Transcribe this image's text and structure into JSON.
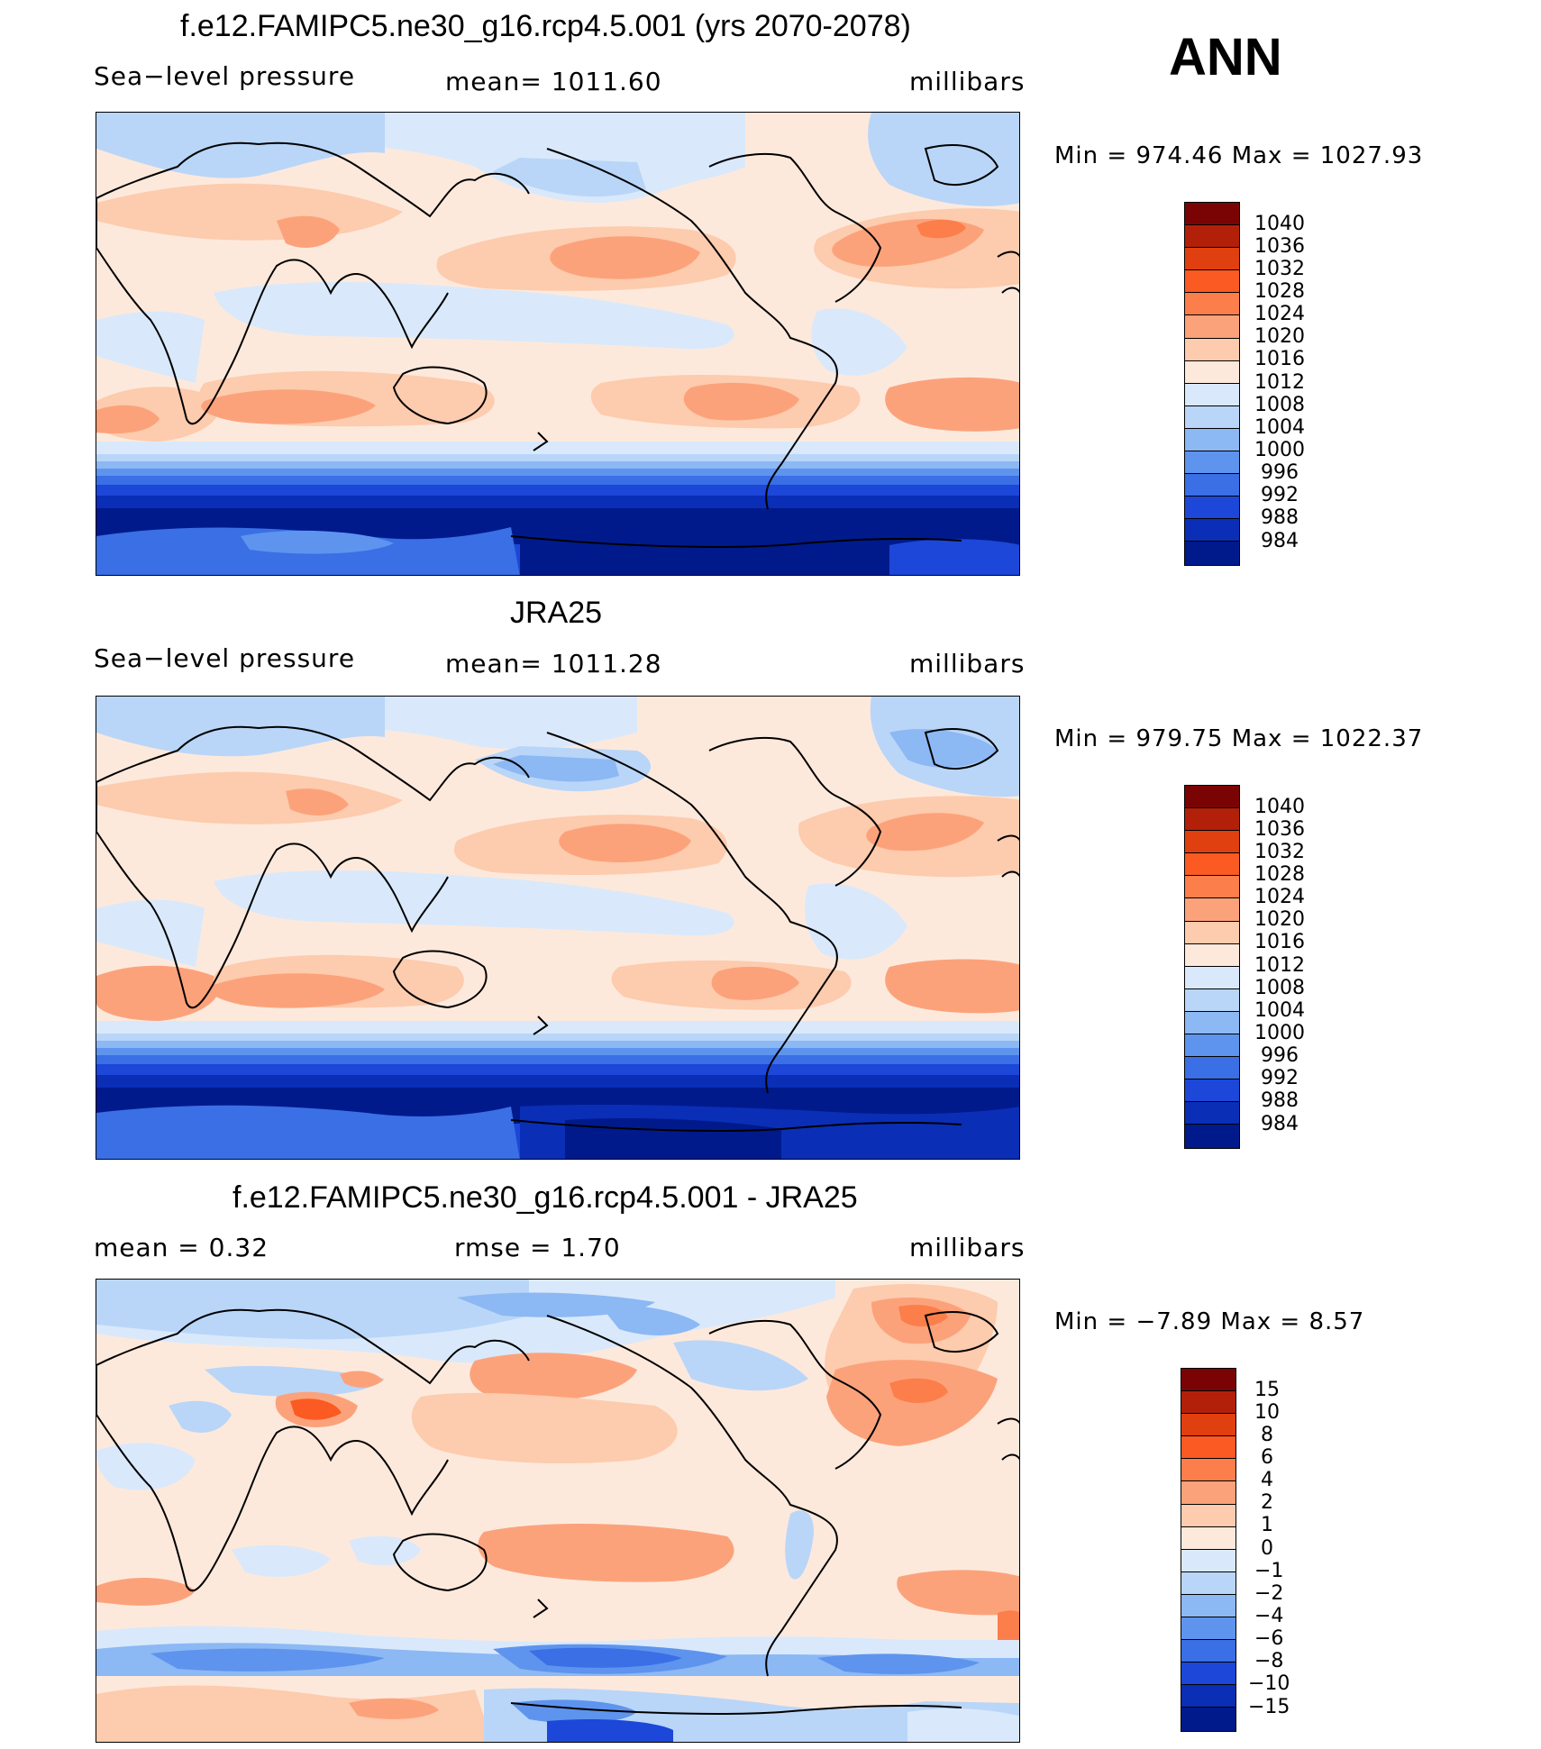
{
  "season": "ANN",
  "panels": [
    {
      "title": "f.e12.FAMIPC5.ne30_g16.rcp4.5.001 (yrs 2070-2078)",
      "left": "Sea−level pressure",
      "center": "mean=  1011.60",
      "units": "millibars",
      "minmax": "Min  =  974.46  Max  =  1027.93",
      "map_kind": "abs",
      "colorbar_labels": [
        "1040",
        "1036",
        "1032",
        "1028",
        "1024",
        "1020",
        "1016",
        "1012",
        "1008",
        "1004",
        "1000",
        "996",
        "992",
        "988",
        "984"
      ]
    },
    {
      "title": "JRA25",
      "left": "Sea−level pressure",
      "center": "mean=  1011.28",
      "units": "millibars",
      "minmax": "Min  =  979.75  Max  =  1022.37",
      "map_kind": "abs2",
      "colorbar_labels": [
        "1040",
        "1036",
        "1032",
        "1028",
        "1024",
        "1020",
        "1016",
        "1012",
        "1008",
        "1004",
        "1000",
        "996",
        "992",
        "988",
        "984"
      ]
    },
    {
      "title": "f.e12.FAMIPC5.ne30_g16.rcp4.5.001 - JRA25",
      "left": "mean  =     0.32",
      "center": "rmse  =     1.70",
      "units": "millibars",
      "minmax": "Min  =   −7.89  Max  =     8.57",
      "map_kind": "diff",
      "colorbar_labels": [
        "15",
        "10",
        "8",
        "6",
        "4",
        "2",
        "1",
        "0",
        "−1",
        "−2",
        "−4",
        "−6",
        "−8",
        "−10",
        "−15"
      ]
    }
  ],
  "colors": {
    "abs_scale": [
      "#7a0403",
      "#b3200a",
      "#e0400f",
      "#fb5a22",
      "#fc7e4a",
      "#fca27b",
      "#fdcbad",
      "#fde9dc",
      "#d9e9fb",
      "#b9d6f8",
      "#8cb8f4",
      "#5e94ee",
      "#3a6fe5",
      "#1c47d8",
      "#0a2eb6",
      "#001a8c"
    ],
    "diff_scale": [
      "#7a0403",
      "#b3200a",
      "#e0400f",
      "#fb5a22",
      "#fc7e4a",
      "#fca27b",
      "#fdcbad",
      "#fde9dc",
      "#d9e9fb",
      "#b9d6f8",
      "#8cb8f4",
      "#5e94ee",
      "#3a6fe5",
      "#1c47d8",
      "#0a2eb6",
      "#001a8c"
    ]
  }
}
